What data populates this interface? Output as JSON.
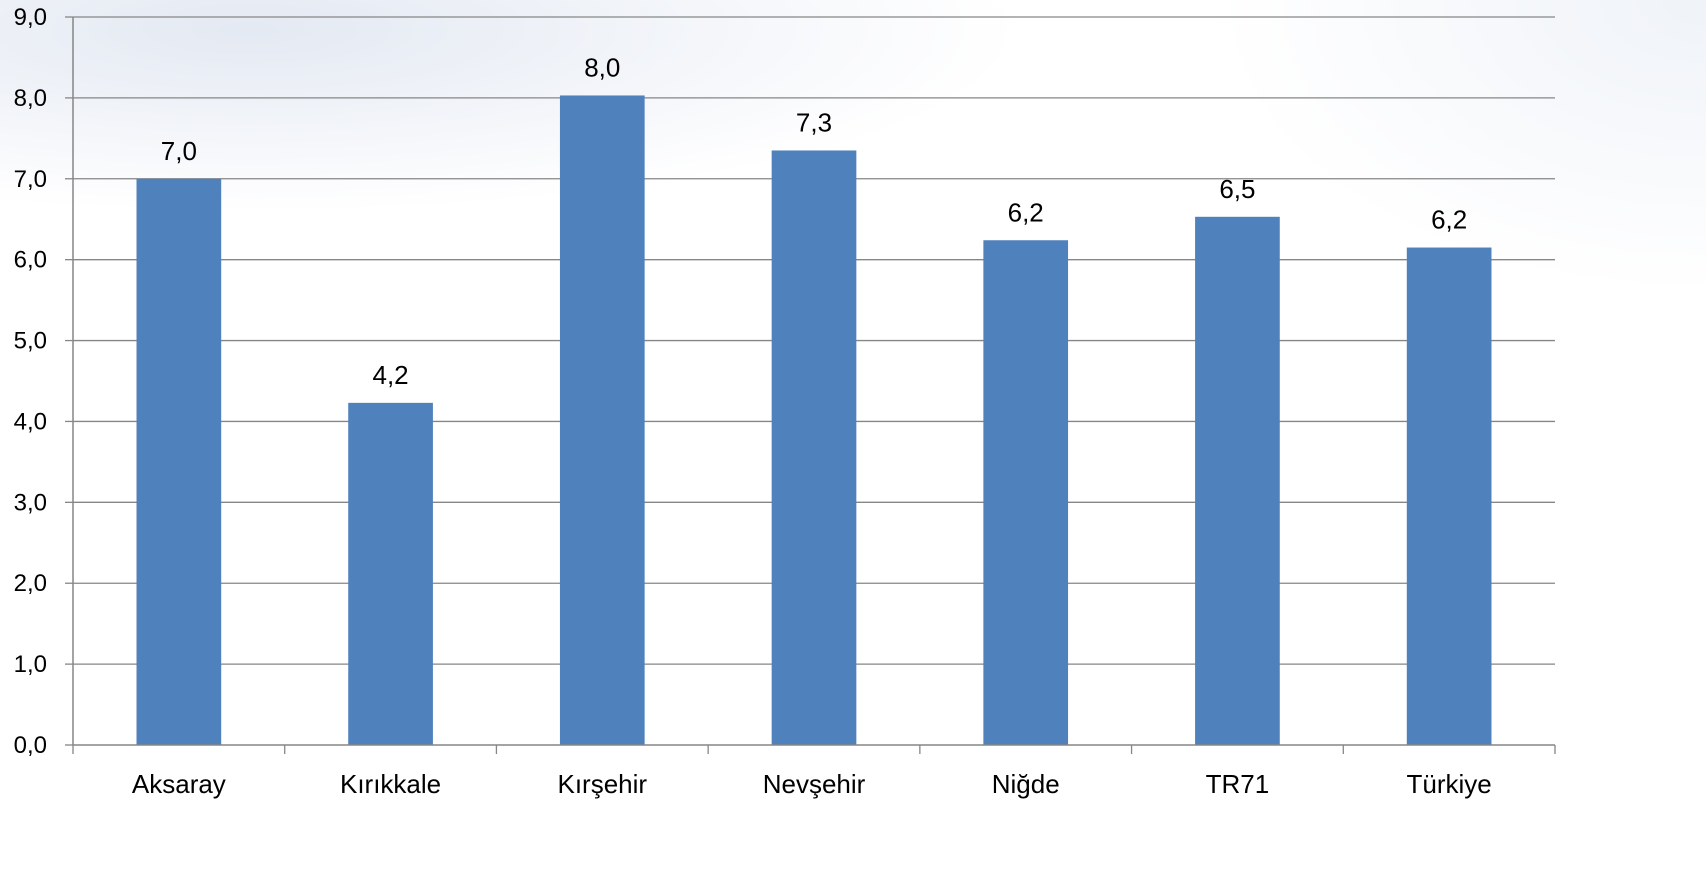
{
  "chart_data": {
    "type": "bar",
    "categories": [
      "Aksaray",
      "Kırıkkale",
      "Kırşehir",
      "Nevşehir",
      "Niğde",
      "TR71",
      "Türkiye"
    ],
    "values": [
      7.0,
      4.23,
      8.03,
      7.35,
      6.24,
      6.53,
      6.15
    ],
    "data_labels": [
      "7,0",
      "4,2",
      "8,0",
      "7,3",
      "6,2",
      "6,5",
      "6,2"
    ],
    "ylim": [
      0,
      9
    ],
    "yticks": [
      0,
      1,
      2,
      3,
      4,
      5,
      6,
      7,
      8,
      9
    ],
    "ytick_labels": [
      "0,0",
      "1,0",
      "2,0",
      "3,0",
      "4,0",
      "5,0",
      "6,0",
      "7,0",
      "8,0",
      "9,0"
    ],
    "grid": true,
    "bar_color": "#4f81bd",
    "grid_color": "#868686",
    "axis_color": "#868686"
  }
}
